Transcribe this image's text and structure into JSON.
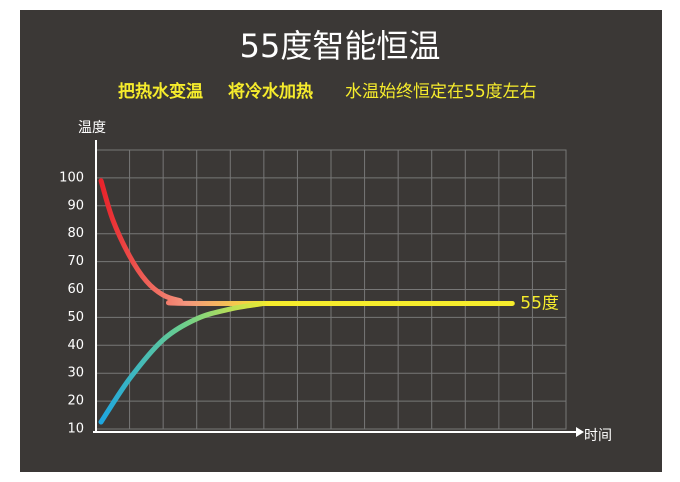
{
  "chart_data": {
    "type": "line",
    "title": "55度智能恒温",
    "subtitle": [
      "把热水变温",
      "将冷水加热",
      "水温始终恒定在55度左右"
    ],
    "y_label": "温度",
    "x_label": "时间",
    "xlim": [
      0,
      14
    ],
    "ylim": [
      10,
      110
    ],
    "yticks": [
      10,
      20,
      30,
      40,
      50,
      60,
      70,
      80,
      90,
      100
    ],
    "grid": true,
    "series": [
      {
        "colors": [
          "#e8232b",
          "#f4957e",
          "#f6ec2c"
        ],
        "x": [
          0.15,
          0.5,
          1,
          1.5,
          2,
          2.5,
          3,
          12.4
        ],
        "values": [
          99,
          85,
          72,
          63,
          58,
          56,
          55,
          55
        ]
      },
      {
        "colors": [
          "#1ea6e0",
          "#6fd08a",
          "#f6ec2c"
        ],
        "x": [
          0.15,
          1,
          2,
          3,
          4,
          5
        ],
        "values": [
          12.5,
          28,
          42,
          49.5,
          53,
          55
        ]
      }
    ],
    "annotation": "55度"
  }
}
